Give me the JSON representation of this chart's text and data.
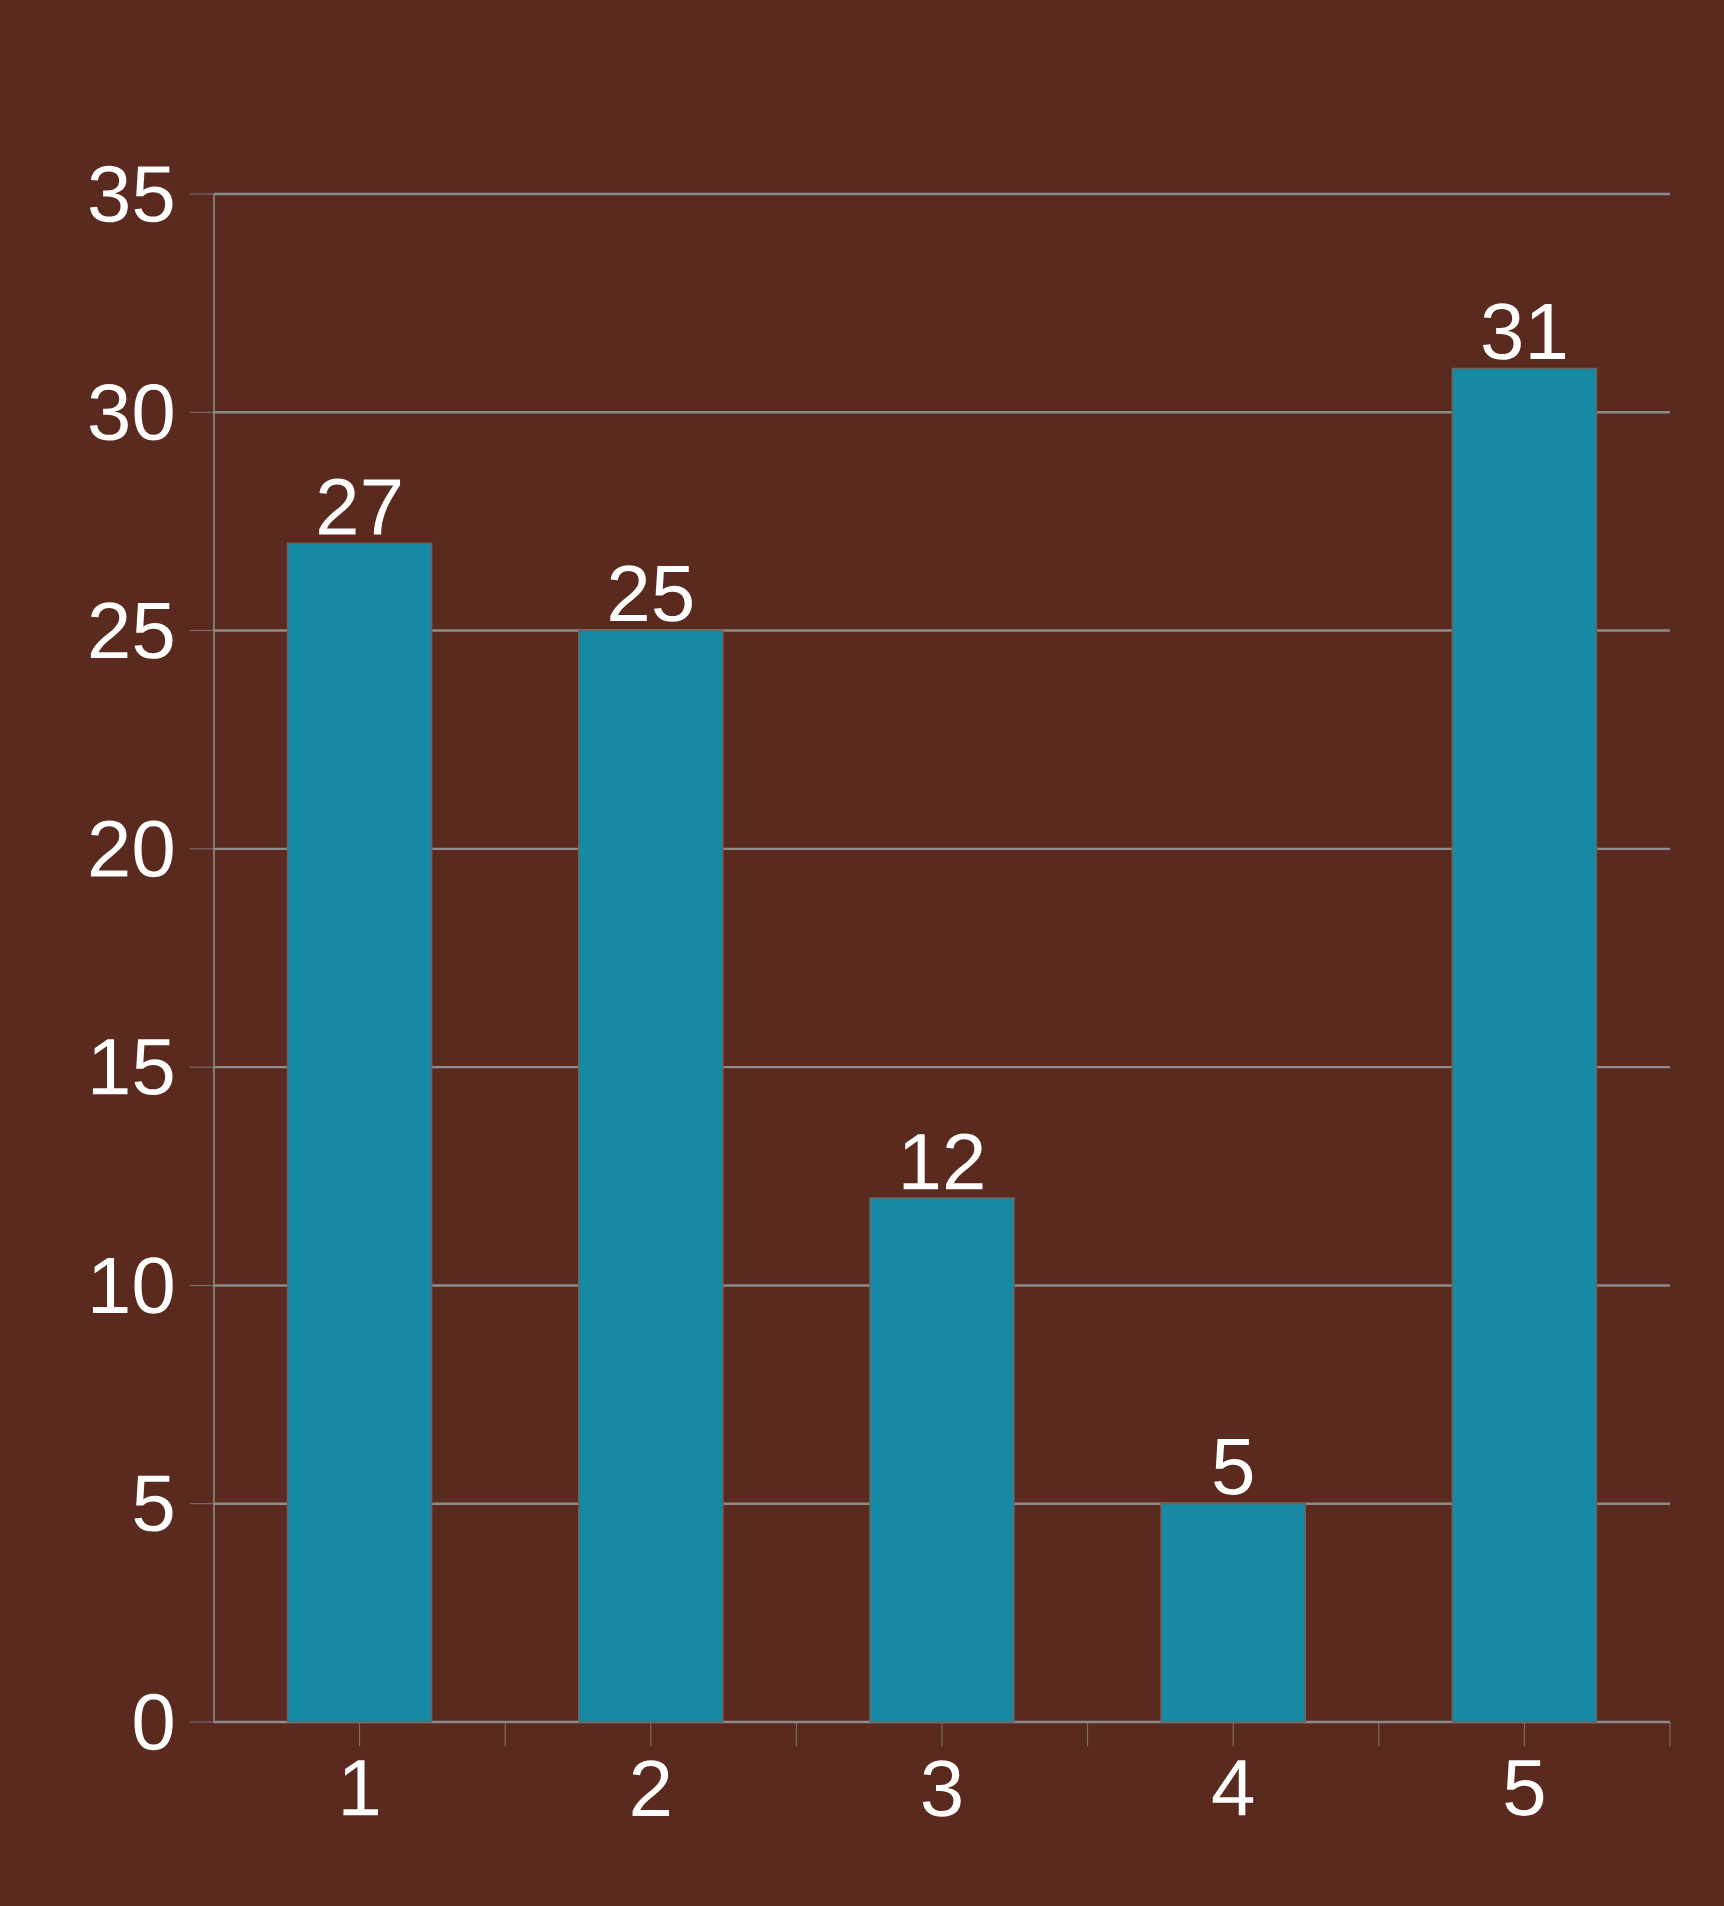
{
  "chart_data": {
    "type": "bar",
    "categories": [
      "1",
      "2",
      "3",
      "4",
      "5"
    ],
    "values": [
      27,
      25,
      12,
      5,
      31
    ],
    "color": "#1689a5",
    "ylim": [
      0,
      35
    ],
    "yticks": [
      0,
      5,
      10,
      15,
      20,
      25,
      30,
      35
    ],
    "grid": "y",
    "data_labels": true
  }
}
